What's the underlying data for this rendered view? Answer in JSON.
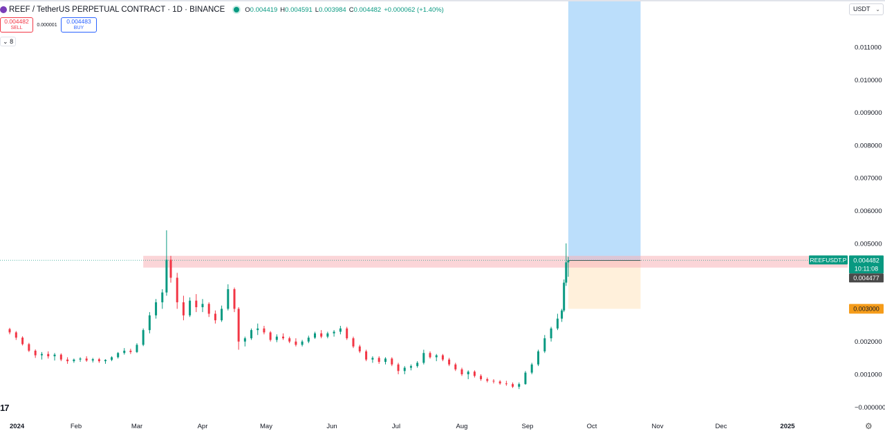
{
  "header": {
    "symbol_title": "REEF / TetherUS PERPETUAL CONTRACT · 1D · BINANCE",
    "ohlc": [
      {
        "key": "O",
        "value": "0.004419"
      },
      {
        "key": "H",
        "value": "0.004591"
      },
      {
        "key": "L",
        "value": "0.003984"
      },
      {
        "key": "C",
        "value": "0.004482"
      },
      {
        "key": "",
        "value": "+0.000062 (+1.40%)"
      }
    ]
  },
  "trade": {
    "sell_price": "0.004482",
    "sell_label": "SELL",
    "spread": "0.000001",
    "buy_price": "0.004483",
    "buy_label": "BUY"
  },
  "indicators_toggle": "8",
  "currency": "USDT",
  "logo": "17",
  "colors": {
    "up": "#089981",
    "down": "#f23645",
    "target_zone": "#bbdefb",
    "stop_zone": "#fff0db",
    "entry_band": "#f7b3b8",
    "stop_label": "#f59c1a",
    "last_price_label": "#089981",
    "dark_label": "#4a4a4a"
  },
  "chart_data": {
    "type": "candlestick",
    "title": "REEF / TetherUS PERPETUAL CONTRACT · 1D · BINANCE",
    "x_ticks": [
      "2024",
      "Feb",
      "Mar",
      "Apr",
      "May",
      "Jun",
      "Jul",
      "Aug",
      "Sep",
      "Oct",
      "Nov",
      "Dec",
      "2025"
    ],
    "y_ticks": [
      "0.011000",
      "0.010000",
      "0.009000",
      "0.008000",
      "0.007000",
      "0.006000",
      "0.005000",
      "0.002000",
      "0.001000",
      "−0.000000"
    ],
    "y_tick_values": [
      0.011,
      0.01,
      0.009,
      0.008,
      0.007,
      0.006,
      0.005,
      0.002,
      0.001,
      0.0
    ],
    "ylim": [
      -0.0001,
      0.0123
    ],
    "grid": false,
    "date_range": [
      "2024-01-01",
      "2025-01-08"
    ],
    "price_labels": {
      "symbol_tag": "REEFUSDT.P",
      "last_price": "0.004482",
      "countdown": "10:11:08",
      "marker_price": "0.004477",
      "stop_price": "0.003000"
    },
    "position": {
      "start_date": "2024-09-20",
      "end_date": "2024-10-24",
      "entry": 0.004477,
      "target": 0.0123,
      "stop": 0.003
    },
    "entry_band": {
      "start_date": "2024-03-04",
      "low": 0.00426,
      "high": 0.00462
    },
    "candles_ohlc": [
      [
        "2024-01-01",
        0.00238,
        0.00242,
        0.00222,
        0.00228
      ],
      [
        "2024-01-04",
        0.00228,
        0.00232,
        0.00205,
        0.00212
      ],
      [
        "2024-01-07",
        0.00212,
        0.00216,
        0.00188,
        0.00192
      ],
      [
        "2024-01-10",
        0.00192,
        0.00196,
        0.00168,
        0.00172
      ],
      [
        "2024-01-13",
        0.00172,
        0.00176,
        0.0015,
        0.00158
      ],
      [
        "2024-01-16",
        0.00158,
        0.00168,
        0.00145,
        0.00162
      ],
      [
        "2024-01-19",
        0.00162,
        0.0017,
        0.00148,
        0.00155
      ],
      [
        "2024-01-22",
        0.00155,
        0.00165,
        0.00142,
        0.0016
      ],
      [
        "2024-01-25",
        0.0016,
        0.00164,
        0.0014,
        0.00145
      ],
      [
        "2024-01-28",
        0.00145,
        0.00152,
        0.00132,
        0.0014
      ],
      [
        "2024-01-31",
        0.0014,
        0.00148,
        0.00135,
        0.00145
      ],
      [
        "2024-02-03",
        0.00145,
        0.00152,
        0.00138,
        0.00148
      ],
      [
        "2024-02-06",
        0.00148,
        0.00155,
        0.00138,
        0.00142
      ],
      [
        "2024-02-09",
        0.00142,
        0.0015,
        0.00136,
        0.00146
      ],
      [
        "2024-02-12",
        0.00146,
        0.0015,
        0.00135,
        0.0014
      ],
      [
        "2024-02-15",
        0.0014,
        0.00146,
        0.00132,
        0.00144
      ],
      [
        "2024-02-18",
        0.00144,
        0.00155,
        0.0014,
        0.00152
      ],
      [
        "2024-02-21",
        0.00152,
        0.00168,
        0.00148,
        0.00165
      ],
      [
        "2024-02-24",
        0.00165,
        0.0018,
        0.0016,
        0.00172
      ],
      [
        "2024-02-27",
        0.00172,
        0.00178,
        0.00162,
        0.00168
      ],
      [
        "2024-03-01",
        0.00168,
        0.00195,
        0.00165,
        0.0019
      ],
      [
        "2024-03-04",
        0.0019,
        0.0024,
        0.00186,
        0.00235
      ],
      [
        "2024-03-07",
        0.00235,
        0.0029,
        0.00225,
        0.0028
      ],
      [
        "2024-03-10",
        0.0028,
        0.0033,
        0.0027,
        0.0032
      ],
      [
        "2024-03-13",
        0.0032,
        0.0036,
        0.003,
        0.0035
      ],
      [
        "2024-03-15",
        0.0035,
        0.0054,
        0.0034,
        0.0045
      ],
      [
        "2024-03-17",
        0.0045,
        0.00462,
        0.0038,
        0.00395
      ],
      [
        "2024-03-20",
        0.00395,
        0.0041,
        0.003,
        0.0032
      ],
      [
        "2024-03-23",
        0.0032,
        0.0034,
        0.00265,
        0.0028
      ],
      [
        "2024-03-26",
        0.0028,
        0.00335,
        0.00275,
        0.00325
      ],
      [
        "2024-03-29",
        0.00325,
        0.00345,
        0.0029,
        0.00305
      ],
      [
        "2024-04-01",
        0.00305,
        0.0033,
        0.0029,
        0.00315
      ],
      [
        "2024-04-04",
        0.00315,
        0.0032,
        0.00275,
        0.00285
      ],
      [
        "2024-04-07",
        0.00285,
        0.00295,
        0.00255,
        0.00265
      ],
      [
        "2024-04-10",
        0.00265,
        0.0031,
        0.0026,
        0.003
      ],
      [
        "2024-04-13",
        0.003,
        0.00375,
        0.00295,
        0.0036
      ],
      [
        "2024-04-16",
        0.0036,
        0.00365,
        0.0029,
        0.003
      ],
      [
        "2024-04-18",
        0.003,
        0.00305,
        0.00175,
        0.002
      ],
      [
        "2024-04-21",
        0.002,
        0.00215,
        0.00185,
        0.0021
      ],
      [
        "2024-04-24",
        0.0021,
        0.0024,
        0.00205,
        0.00235
      ],
      [
        "2024-04-27",
        0.00235,
        0.00255,
        0.0022,
        0.0024
      ],
      [
        "2024-04-30",
        0.0024,
        0.00248,
        0.00222,
        0.00228
      ],
      [
        "2024-05-03",
        0.00228,
        0.00232,
        0.002,
        0.00205
      ],
      [
        "2024-05-06",
        0.00205,
        0.00222,
        0.00198,
        0.00215
      ],
      [
        "2024-05-09",
        0.00215,
        0.00225,
        0.00205,
        0.0021
      ],
      [
        "2024-05-12",
        0.0021,
        0.00215,
        0.00195,
        0.002
      ],
      [
        "2024-05-15",
        0.002,
        0.0021,
        0.00185,
        0.0019
      ],
      [
        "2024-05-18",
        0.0019,
        0.00205,
        0.00185,
        0.002
      ],
      [
        "2024-05-21",
        0.002,
        0.00218,
        0.00195,
        0.00212
      ],
      [
        "2024-05-24",
        0.00212,
        0.0023,
        0.00208,
        0.00225
      ],
      [
        "2024-05-27",
        0.00225,
        0.00235,
        0.0021,
        0.00215
      ],
      [
        "2024-05-30",
        0.00215,
        0.0023,
        0.0021,
        0.00225
      ],
      [
        "2024-06-02",
        0.00225,
        0.00235,
        0.00215,
        0.0023
      ],
      [
        "2024-06-05",
        0.0023,
        0.00248,
        0.00222,
        0.0024
      ],
      [
        "2024-06-08",
        0.0024,
        0.00245,
        0.00205,
        0.0021
      ],
      [
        "2024-06-11",
        0.0021,
        0.00215,
        0.0018,
        0.00185
      ],
      [
        "2024-06-14",
        0.00185,
        0.0019,
        0.00165,
        0.0017
      ],
      [
        "2024-06-17",
        0.0017,
        0.00175,
        0.0014,
        0.00145
      ],
      [
        "2024-06-20",
        0.00145,
        0.00155,
        0.00135,
        0.0015
      ],
      [
        "2024-06-23",
        0.0015,
        0.00155,
        0.00132,
        0.00138
      ],
      [
        "2024-06-26",
        0.00138,
        0.00152,
        0.0013,
        0.00148
      ],
      [
        "2024-06-29",
        0.00148,
        0.00152,
        0.00125,
        0.0013
      ],
      [
        "2024-07-02",
        0.0013,
        0.00135,
        0.001,
        0.0011
      ],
      [
        "2024-07-05",
        0.0011,
        0.00125,
        0.001,
        0.0012
      ],
      [
        "2024-07-08",
        0.0012,
        0.0013,
        0.00112,
        0.00125
      ],
      [
        "2024-07-11",
        0.00125,
        0.0014,
        0.0012,
        0.00135
      ],
      [
        "2024-07-14",
        0.00135,
        0.00175,
        0.0013,
        0.00165
      ],
      [
        "2024-07-17",
        0.00165,
        0.0017,
        0.00148,
        0.00152
      ],
      [
        "2024-07-20",
        0.00152,
        0.00162,
        0.0014,
        0.00158
      ],
      [
        "2024-07-23",
        0.00158,
        0.00162,
        0.0014,
        0.00145
      ],
      [
        "2024-07-26",
        0.00145,
        0.0015,
        0.00125,
        0.0013
      ],
      [
        "2024-07-29",
        0.0013,
        0.00135,
        0.0011,
        0.00115
      ],
      [
        "2024-08-01",
        0.00115,
        0.0012,
        0.00095,
        0.001
      ],
      [
        "2024-08-04",
        0.001,
        0.00112,
        0.00085,
        0.00108
      ],
      [
        "2024-08-07",
        0.00108,
        0.00112,
        0.0009,
        0.00095
      ],
      [
        "2024-08-10",
        0.00095,
        0.001,
        0.0008,
        0.00085
      ],
      [
        "2024-08-13",
        0.00085,
        0.0009,
        0.00075,
        0.0008
      ],
      [
        "2024-08-16",
        0.0008,
        0.00085,
        0.00072,
        0.00078
      ],
      [
        "2024-08-19",
        0.00078,
        0.00082,
        0.00068,
        0.00072
      ],
      [
        "2024-08-22",
        0.00072,
        0.0008,
        0.00065,
        0.0007
      ],
      [
        "2024-08-25",
        0.0007,
        0.00075,
        0.00058,
        0.00062
      ],
      [
        "2024-08-28",
        0.00062,
        0.00075,
        0.00055,
        0.0007
      ],
      [
        "2024-08-31",
        0.0007,
        0.0011,
        0.00068,
        0.00105
      ],
      [
        "2024-09-03",
        0.00105,
        0.00135,
        0.001,
        0.0013
      ],
      [
        "2024-09-06",
        0.0013,
        0.00175,
        0.00125,
        0.0017
      ],
      [
        "2024-09-09",
        0.0017,
        0.0022,
        0.00165,
        0.0021
      ],
      [
        "2024-09-12",
        0.0021,
        0.00245,
        0.002,
        0.0024
      ],
      [
        "2024-09-15",
        0.0024,
        0.00285,
        0.00235,
        0.0027
      ],
      [
        "2024-09-17",
        0.0027,
        0.003,
        0.0026,
        0.00295
      ],
      [
        "2024-09-18",
        0.00295,
        0.0039,
        0.0029,
        0.0038
      ],
      [
        "2024-09-19",
        0.0038,
        0.005,
        0.0037,
        0.00442
      ],
      [
        "2024-09-20",
        0.00442,
        0.00459,
        0.00398,
        0.00448
      ]
    ]
  }
}
